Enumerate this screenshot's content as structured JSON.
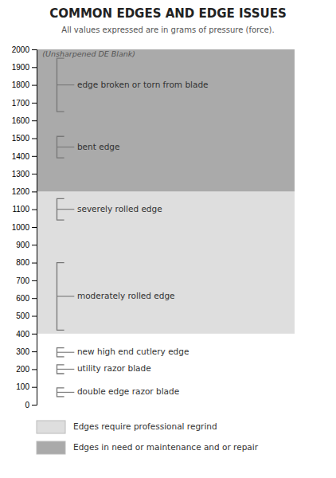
{
  "chart_data": {
    "type": "range",
    "title": "COMMON EDGES AND EDGE ISSUES",
    "subtitle": "All values expressed are in grams of pressure (force).",
    "ylim": [
      0,
      2000
    ],
    "yticks": [
      0,
      100,
      200,
      300,
      400,
      500,
      600,
      700,
      800,
      900,
      1000,
      1100,
      1200,
      1300,
      1400,
      1500,
      1600,
      1700,
      1800,
      1900,
      2000
    ],
    "grid": false,
    "color": "#777777",
    "zones": [
      {
        "name": "Edges require professional regrind",
        "color": "#DEDEDE",
        "ymin": 400,
        "ymax": 1200
      },
      {
        "name": "Edges in need or maintenance and or repair",
        "color": "#AAAAAA",
        "ymin": 1200,
        "ymax": 2000
      }
    ],
    "ranges": [
      {
        "name": "edge broken or torn from blade",
        "ymin": 1650,
        "ymax": 1950
      },
      {
        "name": "bent edge",
        "ymin": 1390,
        "ymax": 1510
      },
      {
        "name": "severely rolled edge",
        "ymin": 1040,
        "ymax": 1160
      },
      {
        "name": "moderately rolled edge",
        "ymin": 420,
        "ymax": 800
      },
      {
        "name": "new high end cutlery edge",
        "ymin": 270,
        "ymax": 320
      },
      {
        "name": "utility razor blade",
        "ymin": 175,
        "ymax": 225
      },
      {
        "name": "double edge razor blade",
        "ymin": 45,
        "ymax": 95
      }
    ],
    "annotations": [
      {
        "text": "(Unsharpened DE Blank)",
        "y": 1960
      }
    ]
  }
}
